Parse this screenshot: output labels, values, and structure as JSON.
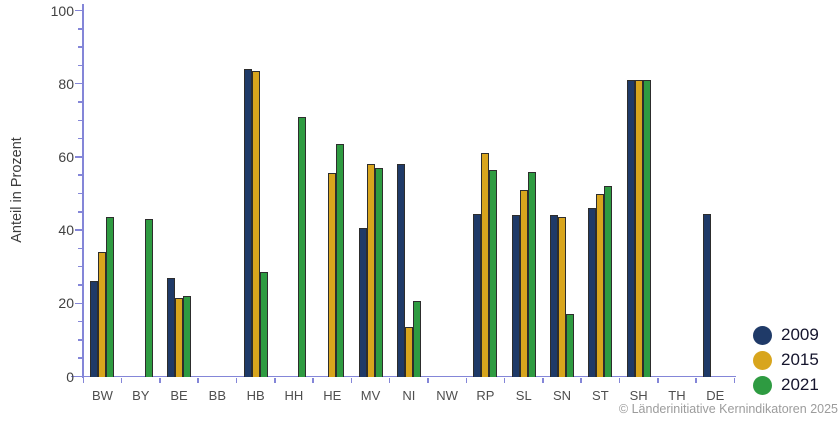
{
  "chart_data": {
    "type": "bar",
    "title": "",
    "ylabel": "Anteil in Prozent",
    "xlabel": "",
    "ylim": [
      0,
      100
    ],
    "y_major_ticks": [
      0,
      20,
      40,
      60,
      80,
      100
    ],
    "y_minor_step": 5,
    "grid": false,
    "legend_position": "right-bottom",
    "categories": [
      "BW",
      "BY",
      "BE",
      "BB",
      "HB",
      "HH",
      "HE",
      "MV",
      "NI",
      "NW",
      "RP",
      "SL",
      "SN",
      "ST",
      "SH",
      "TH",
      "DE"
    ],
    "series": [
      {
        "name": "2009",
        "color": "#1f3a68",
        "values": [
          26,
          null,
          27,
          null,
          84,
          null,
          null,
          40.5,
          58,
          null,
          44.5,
          44,
          44,
          46,
          81,
          null,
          44.5
        ]
      },
      {
        "name": "2015",
        "color": "#d8a51d",
        "values": [
          34,
          null,
          21.5,
          null,
          83.5,
          null,
          55.5,
          58,
          13.5,
          null,
          61,
          51,
          43.5,
          50,
          81,
          null,
          null
        ]
      },
      {
        "name": "2021",
        "color": "#2e9b41",
        "values": [
          43.5,
          43,
          22,
          null,
          28.5,
          71,
          63.5,
          57,
          20.5,
          null,
          56.5,
          56,
          17,
          52,
          81,
          null,
          null
        ]
      }
    ]
  },
  "colors": {
    "axis": "#8486d8",
    "bar_outline": "#2d2d2d",
    "legend_text": "#15152d",
    "copyright_text": "#9c9c9c"
  },
  "copyright": "© Länderinitiative Kernindikatoren 2025"
}
